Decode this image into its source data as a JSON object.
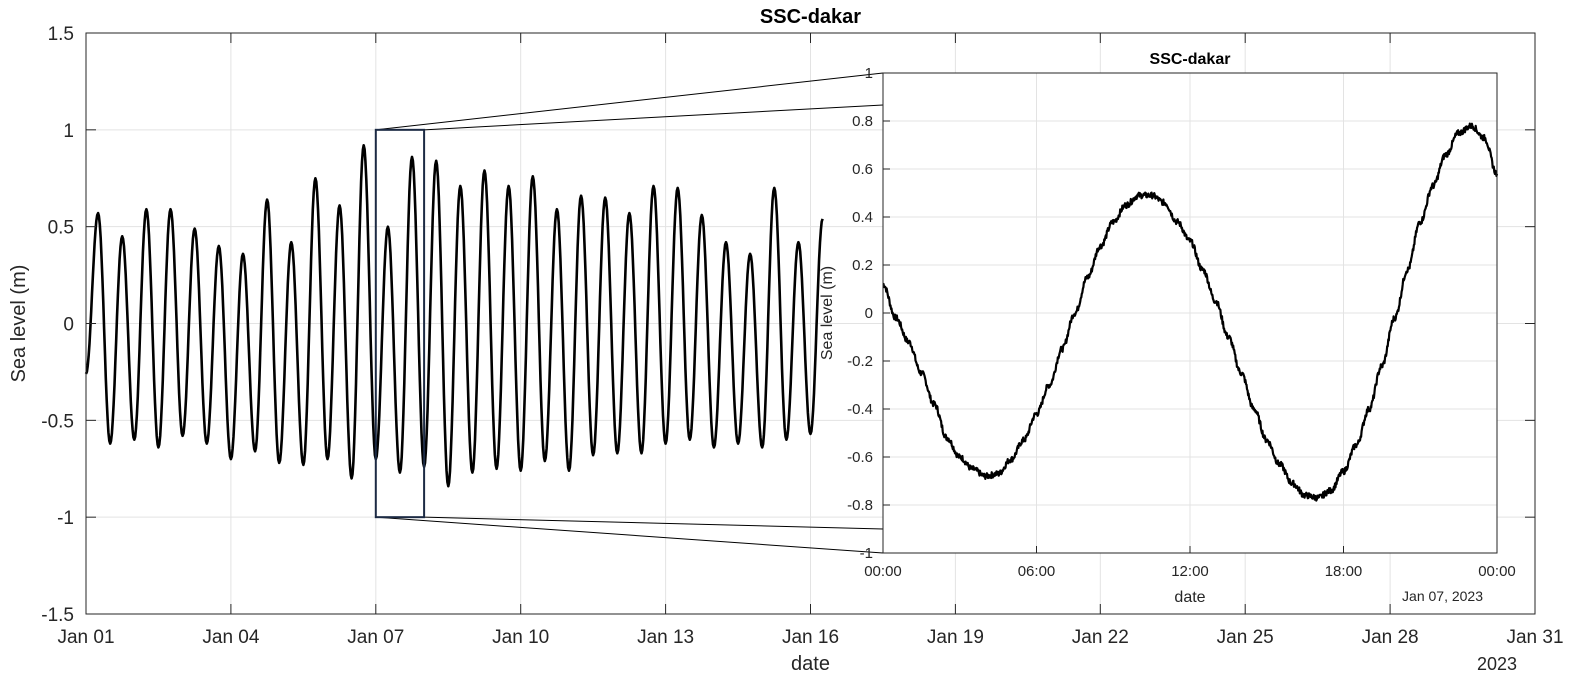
{
  "chart_data": [
    {
      "type": "line",
      "title": "SSC-dakar",
      "xlabel": "date",
      "ylabel": "Sea level (m)",
      "x_tick_labels": [
        "Jan 01",
        "Jan 04",
        "Jan 07",
        "Jan 10",
        "Jan 13",
        "Jan 16",
        "Jan 19",
        "Jan 22",
        "Jan 25",
        "Jan 28",
        "Jan 31"
      ],
      "x_tick_days": [
        1,
        4,
        7,
        10,
        13,
        16,
        19,
        22,
        25,
        28,
        31
      ],
      "x_secondary_label": "2023",
      "xlim_days": [
        1,
        31
      ],
      "ylim": [
        -1.5,
        1.5
      ],
      "y_ticks": [
        -1.5,
        -1,
        -0.5,
        0,
        0.5,
        1,
        1.5
      ],
      "y_tick_labels": [
        "-1.5",
        "-1",
        "-0.5",
        "0",
        "0.5",
        "1",
        "1.5"
      ],
      "grid": true,
      "series": [
        {
          "color": "#000000",
          "x_start_day": 1,
          "x_end_day": 16.2,
          "samples_per_day": 4,
          "values": [
            -0.26,
            0.57,
            -0.62,
            0.45,
            -0.6,
            0.59,
            -0.64,
            0.59,
            -0.58,
            0.49,
            -0.62,
            0.4,
            -0.7,
            0.36,
            -0.66,
            0.64,
            -0.72,
            0.42,
            -0.73,
            0.75,
            -0.7,
            0.61,
            -0.8,
            0.92,
            -0.7,
            0.5,
            -0.77,
            0.86,
            -0.74,
            0.84,
            -0.84,
            0.71,
            -0.77,
            0.79,
            -0.75,
            0.71,
            -0.76,
            0.76,
            -0.71,
            0.59,
            -0.76,
            0.66,
            -0.68,
            0.65,
            -0.67,
            0.57,
            -0.67,
            0.71,
            -0.62,
            0.7,
            -0.6,
            0.56,
            -0.64,
            0.42,
            -0.62,
            0.36,
            -0.64,
            0.7,
            -0.6,
            0.42,
            -0.57,
            0.54
          ]
        }
      ],
      "zoom_box": {
        "x_start_day": 7.0,
        "x_end_day": 8.0,
        "y_min": -1,
        "y_max": 1
      }
    },
    {
      "type": "line",
      "title": "SSC-dakar",
      "xlabel": "date",
      "ylabel": "Sea level (m)",
      "x_tick_labels": [
        "00:00",
        "06:00",
        "12:00",
        "18:00",
        "00:00"
      ],
      "x_tick_hours": [
        0,
        6,
        12,
        18,
        24
      ],
      "x_secondary_label": "Jan 07, 2023",
      "xlim_hours": [
        0,
        24
      ],
      "ylim": [
        -1,
        1
      ],
      "y_ticks": [
        -1,
        -0.8,
        -0.6,
        -0.4,
        -0.2,
        0,
        0.2,
        0.4,
        0.6,
        0.8,
        1
      ],
      "y_tick_labels": [
        "-1",
        "-0.8",
        "-0.6",
        "-0.4",
        "-0.2",
        "0",
        "0.2",
        "0.4",
        "0.6",
        "0.8",
        "1"
      ],
      "grid": true,
      "series": [
        {
          "color": "#000000",
          "x_hours": [
            0,
            0.5,
            1,
            1.5,
            2,
            2.5,
            3,
            3.5,
            4,
            4.5,
            5,
            5.5,
            6,
            6.5,
            7,
            7.5,
            8,
            8.5,
            9,
            9.5,
            10,
            10.5,
            11,
            11.5,
            12,
            12.5,
            13,
            13.5,
            14,
            14.5,
            15,
            15.5,
            16,
            16.5,
            17,
            17.5,
            18,
            18.5,
            19,
            19.5,
            20,
            20.5,
            21,
            21.5,
            22,
            22.5,
            23,
            23.5,
            24
          ],
          "values": [
            0.12,
            -0.02,
            -0.12,
            -0.25,
            -0.38,
            -0.52,
            -0.6,
            -0.65,
            -0.68,
            -0.67,
            -0.61,
            -0.53,
            -0.42,
            -0.3,
            -0.15,
            0.0,
            0.15,
            0.28,
            0.38,
            0.45,
            0.49,
            0.49,
            0.46,
            0.38,
            0.3,
            0.18,
            0.05,
            -0.1,
            -0.25,
            -0.4,
            -0.53,
            -0.63,
            -0.71,
            -0.76,
            -0.77,
            -0.74,
            -0.66,
            -0.55,
            -0.4,
            -0.22,
            -0.02,
            0.18,
            0.38,
            0.53,
            0.66,
            0.75,
            0.78,
            0.73,
            0.58
          ]
        }
      ]
    }
  ]
}
